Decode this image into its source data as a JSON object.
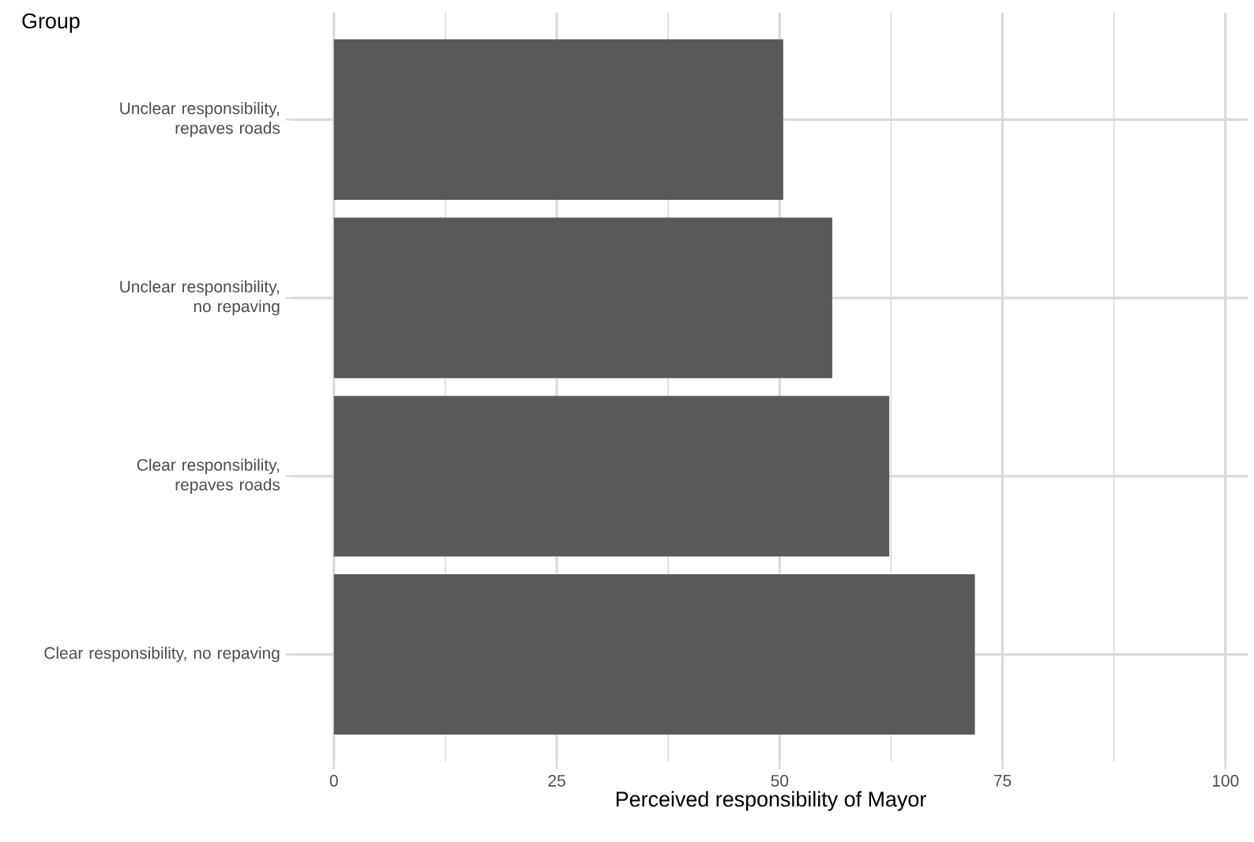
{
  "chart_data": {
    "type": "bar",
    "orientation": "horizontal",
    "ylabel": "Group",
    "xlabel": "Perceived responsibility of Mayor",
    "categories": [
      "Unclear responsibility, repaves roads",
      "Unclear responsibility, no repaving",
      "Clear responsibility, repaves roads",
      "Clear responsibility, no repaving"
    ],
    "values": [
      50.4,
      55.9,
      62.3,
      71.9
    ],
    "color": "#595959",
    "xlim": [
      -4.5,
      102.5
    ],
    "xticks": [
      0,
      {
        "value": 12.5,
        "label": null
      },
      25,
      {
        "value": 37.5,
        "label": null
      },
      50,
      {
        "value": 62.5,
        "label": null
      },
      75,
      {
        "value": 87.5,
        "label": null
      },
      100
    ],
    "grid": true
  }
}
